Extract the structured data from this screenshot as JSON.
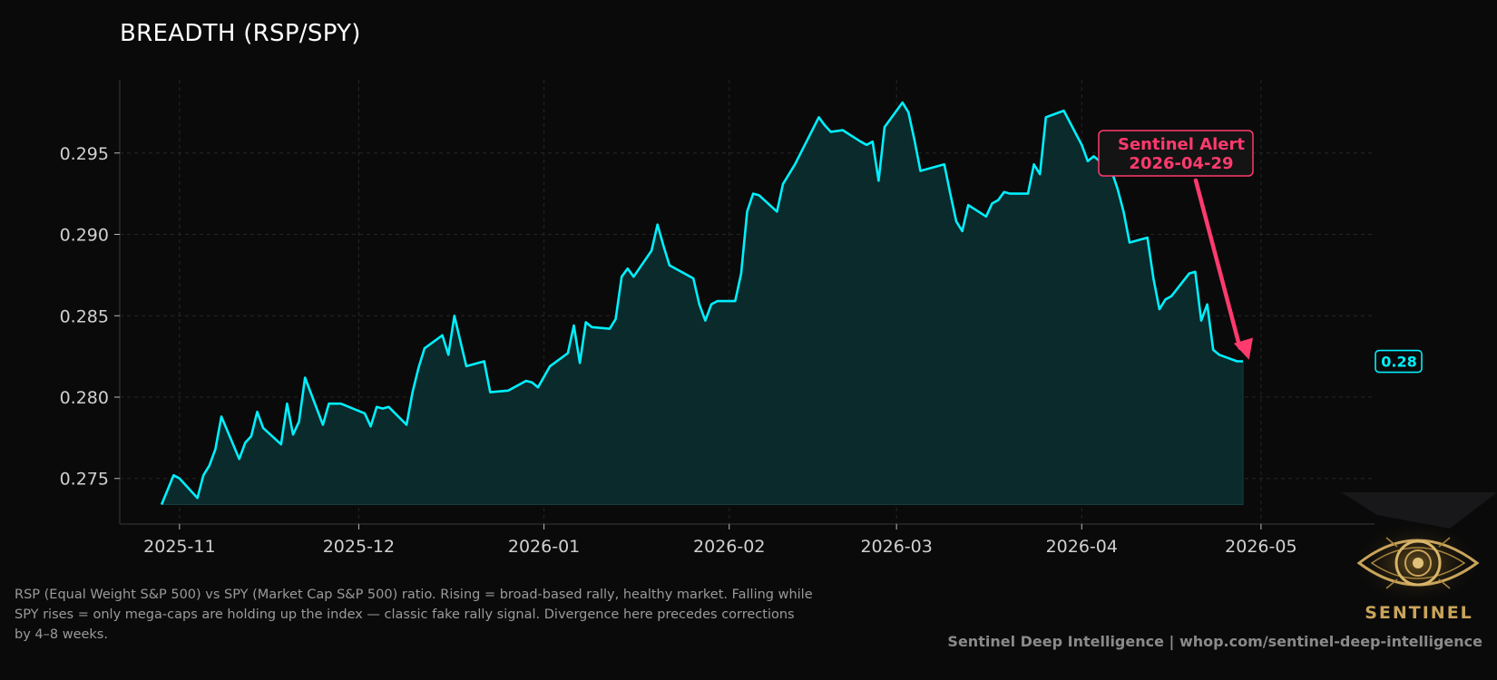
{
  "chart_data": {
    "type": "area",
    "title": "BREADTH (RSP/SPY)",
    "xlabel": "",
    "ylabel": "",
    "x_ticks": [
      "2025-11",
      "2025-12",
      "2026-01",
      "2026-02",
      "2026-03",
      "2026-04",
      "2026-05"
    ],
    "y_ticks": [
      "0.275",
      "0.280",
      "0.285",
      "0.290",
      "0.295"
    ],
    "xlim": [
      "2025-10-22",
      "2026-05-20"
    ],
    "ylim": [
      0.2722,
      0.2995
    ],
    "grid": true,
    "series": [
      {
        "color": "#00f0ff",
        "x": [
          "2025-10-29",
          "2025-10-31",
          "2025-11-01",
          "2025-11-04",
          "2025-11-05",
          "2025-11-06",
          "2025-11-07",
          "2025-11-08",
          "2025-11-11",
          "2025-11-12",
          "2025-11-13",
          "2025-11-14",
          "2025-11-15",
          "2025-11-18",
          "2025-11-19",
          "2025-11-20",
          "2025-11-21",
          "2025-11-22",
          "2025-11-25",
          "2025-11-26",
          "2025-11-28",
          "2025-12-02",
          "2025-12-03",
          "2025-12-04",
          "2025-12-05",
          "2025-12-06",
          "2025-12-09",
          "2025-12-10",
          "2025-12-11",
          "2025-12-12",
          "2025-12-15",
          "2025-12-16",
          "2025-12-17",
          "2025-12-19",
          "2025-12-22",
          "2025-12-23",
          "2025-12-26",
          "2025-12-29",
          "2025-12-30",
          "2025-12-31",
          "2026-01-02",
          "2026-01-05",
          "2026-01-06",
          "2026-01-07",
          "2026-01-08",
          "2026-01-09",
          "2026-01-12",
          "2026-01-13",
          "2026-01-14",
          "2026-01-15",
          "2026-01-16",
          "2026-01-19",
          "2026-01-20",
          "2026-01-21",
          "2026-01-22",
          "2026-01-26",
          "2026-01-27",
          "2026-01-28",
          "2026-01-29",
          "2026-01-30",
          "2026-02-02",
          "2026-02-03",
          "2026-02-04",
          "2026-02-05",
          "2026-02-06",
          "2026-02-09",
          "2026-02-10",
          "2026-02-12",
          "2026-02-16",
          "2026-02-17",
          "2026-02-18",
          "2026-02-20",
          "2026-02-23",
          "2026-02-24",
          "2026-02-25",
          "2026-02-26",
          "2026-02-27",
          "2026-03-02",
          "2026-03-03",
          "2026-03-04",
          "2026-03-05",
          "2026-03-09",
          "2026-03-10",
          "2026-03-11",
          "2026-03-12",
          "2026-03-13",
          "2026-03-16",
          "2026-03-17",
          "2026-03-18",
          "2026-03-19",
          "2026-03-20",
          "2026-03-23",
          "2026-03-24",
          "2026-03-25",
          "2026-03-26",
          "2026-03-29",
          "2026-04-01",
          "2026-04-02",
          "2026-04-03",
          "2026-04-06",
          "2026-04-07",
          "2026-04-08",
          "2026-04-09",
          "2026-04-12",
          "2026-04-13",
          "2026-04-14",
          "2026-04-15",
          "2026-04-16",
          "2026-04-19",
          "2026-04-20",
          "2026-04-21",
          "2026-04-22",
          "2026-04-23",
          "2026-04-24",
          "2026-04-27",
          "2026-04-28"
        ],
        "values": [
          0.2734,
          0.2752,
          0.275,
          0.2738,
          0.2752,
          0.2758,
          0.2768,
          0.2788,
          0.2762,
          0.2772,
          0.2776,
          0.2791,
          0.2781,
          0.2771,
          0.2796,
          0.2777,
          0.2785,
          0.2812,
          0.2783,
          0.2796,
          0.2796,
          0.279,
          0.2782,
          0.2794,
          0.2793,
          0.2794,
          0.2783,
          0.2803,
          0.2818,
          0.283,
          0.2838,
          0.2826,
          0.285,
          0.2819,
          0.2822,
          0.2803,
          0.2804,
          0.281,
          0.2809,
          0.2806,
          0.2819,
          0.2827,
          0.2844,
          0.2821,
          0.2846,
          0.2843,
          0.2842,
          0.2848,
          0.2874,
          0.2879,
          0.2874,
          0.289,
          0.2906,
          0.2893,
          0.2881,
          0.2873,
          0.2857,
          0.2847,
          0.2857,
          0.2859,
          0.2859,
          0.2876,
          0.2914,
          0.2925,
          0.2924,
          0.2914,
          0.2931,
          0.2943,
          0.2972,
          0.2967,
          0.2963,
          0.2964,
          0.2957,
          0.2955,
          0.2957,
          0.2933,
          0.2966,
          0.2981,
          0.2975,
          0.2958,
          0.2939,
          0.2943,
          0.2925,
          0.2908,
          0.2902,
          0.2918,
          0.2911,
          0.2919,
          0.2921,
          0.2926,
          0.2925,
          0.2925,
          0.2943,
          0.2937,
          0.2972,
          0.2976,
          0.2955,
          0.2945,
          0.2948,
          0.2939,
          0.2928,
          0.2914,
          0.2895,
          0.2898,
          0.2873,
          0.2854,
          0.286,
          0.2862,
          0.2876,
          0.2877,
          0.2847,
          0.2857,
          0.2829,
          0.2826,
          0.2822,
          0.2822
        ]
      }
    ],
    "annotations": [
      {
        "text_line1": "Sentinel Alert",
        "text_line2": "2026-04-29",
        "color": "#ff3a6e",
        "arrow_to_x": "2026-04-29",
        "arrow_to_y": 0.2823
      }
    ],
    "last_value_badge": "0.28"
  },
  "description": "RSP (Equal Weight S&P 500) vs SPY (Market Cap S&P 500) ratio. Rising = broad-based rally, healthy market. Falling while SPY rises = only mega-caps are holding up the index — classic fake rally signal. Divergence here precedes corrections by 4–8 weeks.",
  "footer": {
    "credit": "Sentinel Deep Intelligence  |  whop.com/sentinel-deep-intelligence"
  },
  "logo": {
    "text": "SENTINEL"
  },
  "colors": {
    "background": "#0a0a0a",
    "line": "#00f0ff",
    "fill": "#0a2a2b",
    "alert": "#ff3a6e",
    "grid": "#262626",
    "gold": "#c9a45a"
  }
}
